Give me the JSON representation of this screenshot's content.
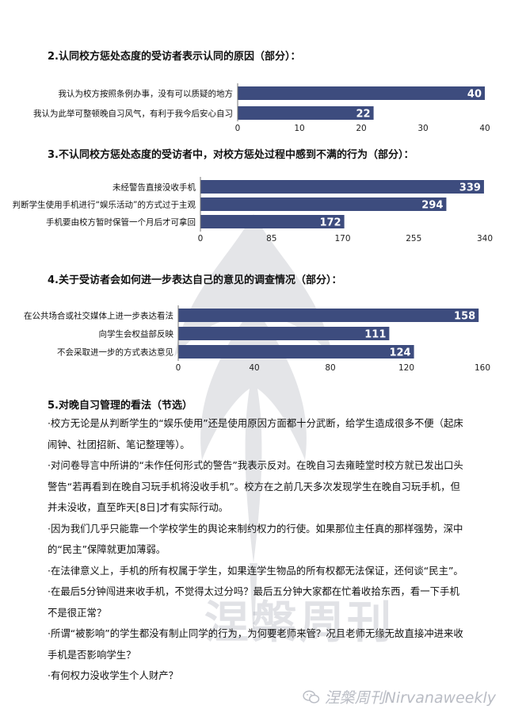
{
  "charts": [
    {
      "heading": "2.认同校方惩处态度的受访者表示认同的原因（部分）：",
      "categories": [
        "我认为校方按照条例办事，没有可以质疑的地方",
        "我认为此举可整顿晚自习风气，有利于我今后安心自习"
      ],
      "values": [
        40,
        22
      ],
      "ticks": [
        0,
        10,
        20,
        30,
        40
      ],
      "xlim": [
        0,
        40
      ]
    },
    {
      "heading": "3.不认同校方惩处态度的受访者中，对校方惩处过程中感到不满的行为（部分）：",
      "categories": [
        "未经警告直接没收手机",
        "判断学生使用手机进行“娱乐活动”的方式过于主观",
        "手机要由校方暂时保管一个月后才可拿回"
      ],
      "values": [
        339,
        294,
        172
      ],
      "ticks": [
        0,
        85,
        170,
        255,
        340
      ],
      "xlim": [
        0,
        340
      ]
    },
    {
      "heading": "4.关于受访者会如何进一步表达自己的意见的调查情况（部分）：",
      "categories": [
        "在公共场合或社交媒体上进一步表达看法",
        "向学生会权益部反映",
        "不会采取进一步的方式表达意见"
      ],
      "values": [
        158,
        111,
        124
      ],
      "ticks": [
        0,
        40,
        80,
        120,
        160
      ],
      "xlim": [
        0,
        160
      ]
    }
  ],
  "chart_data": [
    {
      "type": "bar",
      "title": "2.认同校方惩处态度的受访者表示认同的原因（部分）：",
      "categories": [
        "我认为校方按照条例办事，没有可以质疑的地方",
        "我认为此举可整顿晚自习风气，有利于我今后安心自习"
      ],
      "values": [
        40,
        22
      ],
      "xlim": [
        0,
        40
      ],
      "orientation": "horizontal",
      "grid": false
    },
    {
      "type": "bar",
      "title": "3.不认同校方惩处态度的受访者中，对校方惩处过程中感到不满的行为（部分）：",
      "categories": [
        "未经警告直接没收手机",
        "判断学生使用手机进行“娱乐活动”的方式过于主观",
        "手机要由校方暂时保管一个月后才可拿回"
      ],
      "values": [
        339,
        294,
        172
      ],
      "xlim": [
        0,
        340
      ],
      "orientation": "horizontal",
      "grid": false
    },
    {
      "type": "bar",
      "title": "4.关于受访者会如何进一步表达自己的意见的调查情况（部分）：",
      "categories": [
        "在公共场合或社交媒体上进一步表达看法",
        "向学生会权益部反映",
        "不会采取进一步的方式表达意见"
      ],
      "values": [
        158,
        111,
        124
      ],
      "xlim": [
        0,
        160
      ],
      "orientation": "horizontal",
      "grid": false
    }
  ],
  "notes": {
    "title": "5.对晚自习管理的看法（节选）",
    "items": [
      "·校方无论是从判断学生的“娱乐使用”还是使用原因方面都十分武断，给学生造成很多不便（起床闹钟、社团招新、笔记整理等）。",
      "·对问卷导言中所讲的“未作任何形式的警告”我表示反对。在晚自习去雍睦堂时校方就已发出口头警告“若再看到在晚自习玩手机将没收手机”。校方在之前几天多次发现学生在晚自习玩手机，但并未没收，直至昨天[8日]才有实际行动。",
      "·因为我们几乎只能靠一个学校学生的舆论来制约权力的行使。如果那位主任真的那样强势，深中的“民主”保障就更加薄弱。",
      "·在法律意义上，手机的所有权属于学生，如果连学生物品的所有权都无法保证，还何谈“民主”。",
      "·在最后5分钟闯进来收手机，不觉得太过分吗？最后五分钟大家都在忙着收拾东西，看一下手机不是很正常？",
      "·所谓“被影响”的学生都没有制止同学的行为，为何要老师来管？况且老师无缘无故直接冲进来收手机是否影响学生？",
      "·有何权力没收学生个人财产？"
    ]
  },
  "footer": {
    "brand": "涅槃周刊Nirvanaweekly",
    "icon": "wechat-icon"
  },
  "watermark": {
    "text": "涅槃周刊",
    "icon": "phoenix-icon"
  },
  "colors": {
    "bar": "#3d4c7e",
    "bar_text": "#ffffff",
    "axis": "#777777"
  }
}
